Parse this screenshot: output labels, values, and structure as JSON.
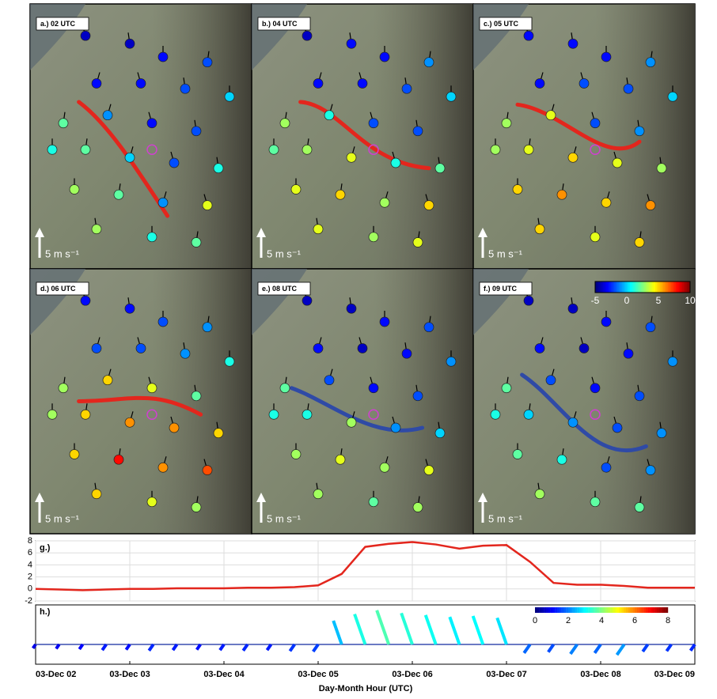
{
  "panels": [
    {
      "label": "a.) 02 UTC",
      "scale_label": "5 m s⁻¹",
      "front_color": "#e3261d",
      "temperatures": [
        -4,
        -4,
        -3,
        -2,
        -3,
        -3,
        -2,
        0,
        2,
        -1,
        -3,
        -2,
        1,
        2,
        0,
        -2,
        1,
        3,
        2,
        -1,
        4,
        3,
        1,
        2
      ]
    },
    {
      "label": "b.) 04 UTC",
      "scale_label": "5 m s⁻¹",
      "front_color": "#e3261d",
      "temperatures": [
        -4,
        -3,
        -3,
        -1,
        -3,
        -3,
        -2,
        0,
        3,
        1,
        -2,
        -2,
        2,
        3,
        4,
        1,
        2,
        4,
        5,
        3,
        5,
        4,
        3,
        4
      ]
    },
    {
      "label": "c.) 05 UTC",
      "scale_label": "5 m s⁻¹",
      "front_color": "#e3261d",
      "temperatures": [
        -3,
        -3,
        -3,
        -1,
        -3,
        -2,
        -2,
        0,
        3,
        4,
        -2,
        -1,
        3,
        4,
        5,
        4,
        3,
        5,
        6,
        5,
        6,
        5,
        4,
        5
      ]
    },
    {
      "label": "d.) 06 UTC",
      "scale_label": "5 m s⁻¹",
      "front_color": "#e3261d",
      "temperatures": [
        -3,
        -3,
        -2,
        -1,
        -2,
        -2,
        -1,
        1,
        3,
        5,
        4,
        2,
        3,
        5,
        6,
        6,
        5,
        5,
        8,
        6,
        7,
        5,
        4,
        3
      ]
    },
    {
      "label": "e.) 08 UTC",
      "scale_label": "5 m s⁻¹",
      "front_color": "#2f4aa6",
      "temperatures": [
        -4,
        -4,
        -3,
        -2,
        -3,
        -4,
        -3,
        -1,
        2,
        -2,
        -3,
        -2,
        1,
        1,
        3,
        -1,
        0,
        3,
        4,
        3,
        4,
        3,
        2,
        3
      ]
    },
    {
      "label": "f.) 09 UTC",
      "scale_label": "5 m s⁻¹",
      "front_color": "#2f4aa6",
      "temperatures": [
        -4,
        -4,
        -3,
        -2,
        -3,
        -4,
        -3,
        -1,
        2,
        -2,
        -3,
        -2,
        1,
        0,
        -1,
        -2,
        -1,
        2,
        1,
        -2,
        -1,
        3,
        2,
        2
      ]
    }
  ],
  "map_colorbar": {
    "clim": [
      -5,
      10
    ],
    "ticks": [
      -5,
      0,
      5,
      10
    ]
  },
  "chart_data": [
    {
      "type": "line",
      "label": "g.)",
      "xlim": [
        2,
        9
      ],
      "ylim": [
        -2,
        8
      ],
      "yticks": [
        -2,
        0,
        2,
        4,
        6,
        8
      ],
      "grid": true,
      "x": [
        2,
        2.25,
        2.5,
        2.75,
        3,
        3.25,
        3.5,
        3.75,
        4,
        4.25,
        4.5,
        4.75,
        5,
        5.25,
        5.5,
        5.75,
        6,
        6.25,
        6.5,
        6.75,
        7,
        7.25,
        7.5,
        7.75,
        8,
        8.25,
        8.5,
        8.75,
        9
      ],
      "series": [
        {
          "color": "#e3261d",
          "values": [
            0,
            -0.1,
            -0.2,
            -0.1,
            0,
            0,
            0.1,
            0.1,
            0.1,
            0.2,
            0.2,
            0.3,
            0.6,
            2.5,
            7.0,
            7.5,
            7.8,
            7.4,
            6.7,
            7.2,
            7.3,
            4.5,
            1.0,
            0.7,
            0.7,
            0.5,
            0.2,
            0.2,
            0.2
          ]
        }
      ]
    },
    {
      "type": "barbs",
      "label": "h.)",
      "xlim": [
        2,
        9
      ],
      "clim": [
        0,
        8
      ],
      "cticks": [
        0,
        2,
        4,
        6,
        8
      ],
      "xticks": [
        {
          "value": 2,
          "label": "03-Dec 02"
        },
        {
          "value": 3,
          "label": "03-Dec 03"
        },
        {
          "value": 4,
          "label": "03-Dec 04"
        },
        {
          "value": 5,
          "label": "03-Dec 05"
        },
        {
          "value": 6,
          "label": "03-Dec 06"
        },
        {
          "value": 7,
          "label": "03-Dec 07"
        },
        {
          "value": 8,
          "label": "03-Dec 08"
        },
        {
          "value": 9,
          "label": "03-Dec 09"
        }
      ],
      "xlabel": "Day-Month Hour (UTC)",
      "x": [
        2,
        2.25,
        2.5,
        2.75,
        3,
        3.25,
        3.5,
        3.75,
        4,
        4.25,
        4.5,
        4.75,
        5,
        5.25,
        5.5,
        5.75,
        6,
        6.25,
        6.5,
        6.75,
        7,
        7.25,
        7.5,
        7.75,
        8,
        8.25,
        8.5,
        8.75,
        9
      ],
      "values": [
        0.8,
        0.9,
        1.0,
        1.2,
        1.1,
        1.3,
        1.2,
        1.1,
        1.2,
        1.3,
        1.2,
        1.4,
        1.5,
        2.5,
        3.2,
        3.6,
        3.3,
        3.1,
        2.9,
        3.0,
        2.8,
        1.8,
        1.6,
        2.0,
        1.8,
        2.2,
        1.5,
        1.4,
        1.3
      ]
    }
  ]
}
